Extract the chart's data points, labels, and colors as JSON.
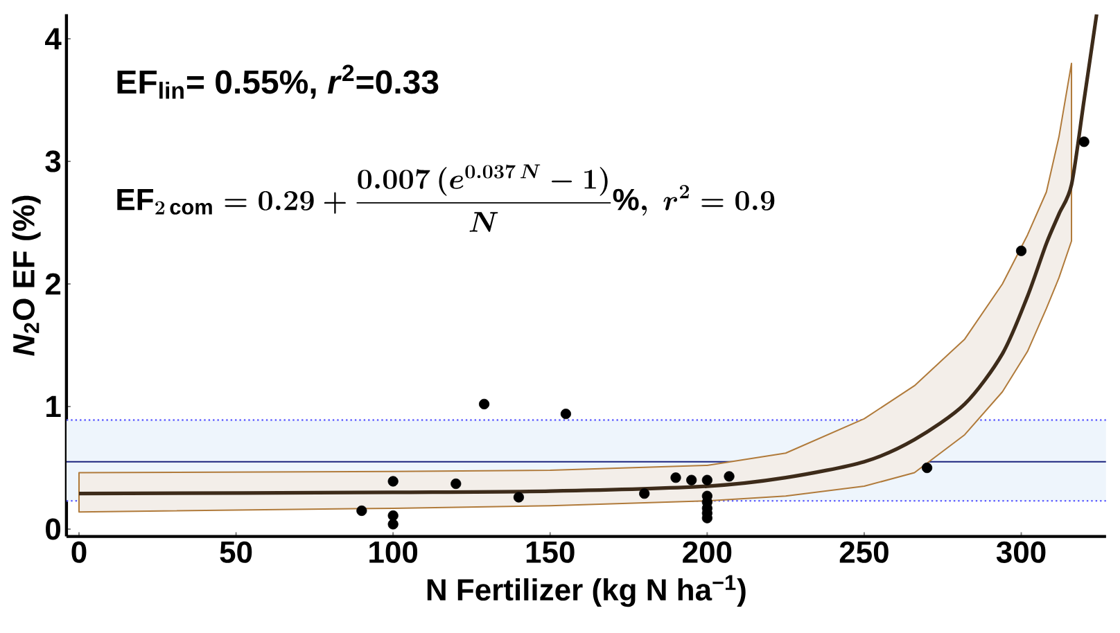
{
  "chart_data": {
    "type": "scatter",
    "xlabel": "N Fertilizer (kg N ha$^{−1}$)",
    "ylabel": "*N*$_{2}$O EF (%)",
    "xlim": [
      -4,
      327
    ],
    "ylim": [
      -0.06,
      4.2
    ],
    "xticks": [
      0,
      50,
      100,
      150,
      200,
      250,
      300
    ],
    "yticks": [
      0,
      1,
      2,
      3,
      4
    ],
    "series": [
      {
        "color": "#000000",
        "marker": "circle",
        "x": [
          90,
          100,
          100,
          100,
          120,
          129,
          140,
          155,
          180,
          190,
          195,
          200,
          200,
          200,
          200,
          200,
          200,
          207,
          270,
          300,
          320
        ],
        "values": [
          0.15,
          0.39,
          0.11,
          0.04,
          0.37,
          1.02,
          0.26,
          0.94,
          0.29,
          0.42,
          0.4,
          0.4,
          0.27,
          0.22,
          0.17,
          0.13,
          0.09,
          0.43,
          0.5,
          2.27,
          3.16
        ]
      },
      {
        "type": "line",
        "color": "#3d2b1a",
        "x": [
          0,
          100,
          150,
          200,
          225,
          250,
          266,
          282,
          294,
          302,
          308,
          312,
          316,
          320,
          324
        ],
        "values": [
          0.29,
          0.3,
          0.31,
          0.35,
          0.42,
          0.55,
          0.73,
          1.02,
          1.43,
          1.9,
          2.33,
          2.57,
          2.81,
          3.5,
          4.2
        ],
        "lower": [
          0.14,
          0.17,
          0.19,
          0.23,
          0.27,
          0.35,
          0.46,
          0.77,
          1.12,
          1.45,
          1.8,
          2.05,
          2.35,
          null,
          null
        ],
        "upper": [
          0.46,
          0.47,
          0.48,
          0.52,
          0.62,
          0.9,
          1.17,
          1.55,
          2.0,
          2.4,
          2.75,
          3.2,
          3.8,
          null,
          null
        ]
      }
    ],
    "ref_lines": [
      {
        "axis": "y",
        "value": 0.55,
        "color": "#1a237e",
        "line_style": "solid"
      },
      {
        "axis": "y",
        "value": 0.89,
        "color": "#6060ff",
        "line_style": "dotted"
      },
      {
        "axis": "y",
        "value": 0.23,
        "color": "#6060ff",
        "line_style": "dotted"
      }
    ],
    "bands": [
      {
        "axis": "y",
        "from": 0.23,
        "to": 0.89,
        "color": "#eef5fc"
      }
    ],
    "annotations": [
      "EF$_{lin}$= 0.55%, *r*$^{2}$=0.33",
      "\\mathrm{EF}_{2\\,\\mathrm{com}}=0.29+\\frac{0.007\\,(e^{0.037\\,N}-1)}{N}\\%,\\ r^{2}=0.9"
    ]
  }
}
